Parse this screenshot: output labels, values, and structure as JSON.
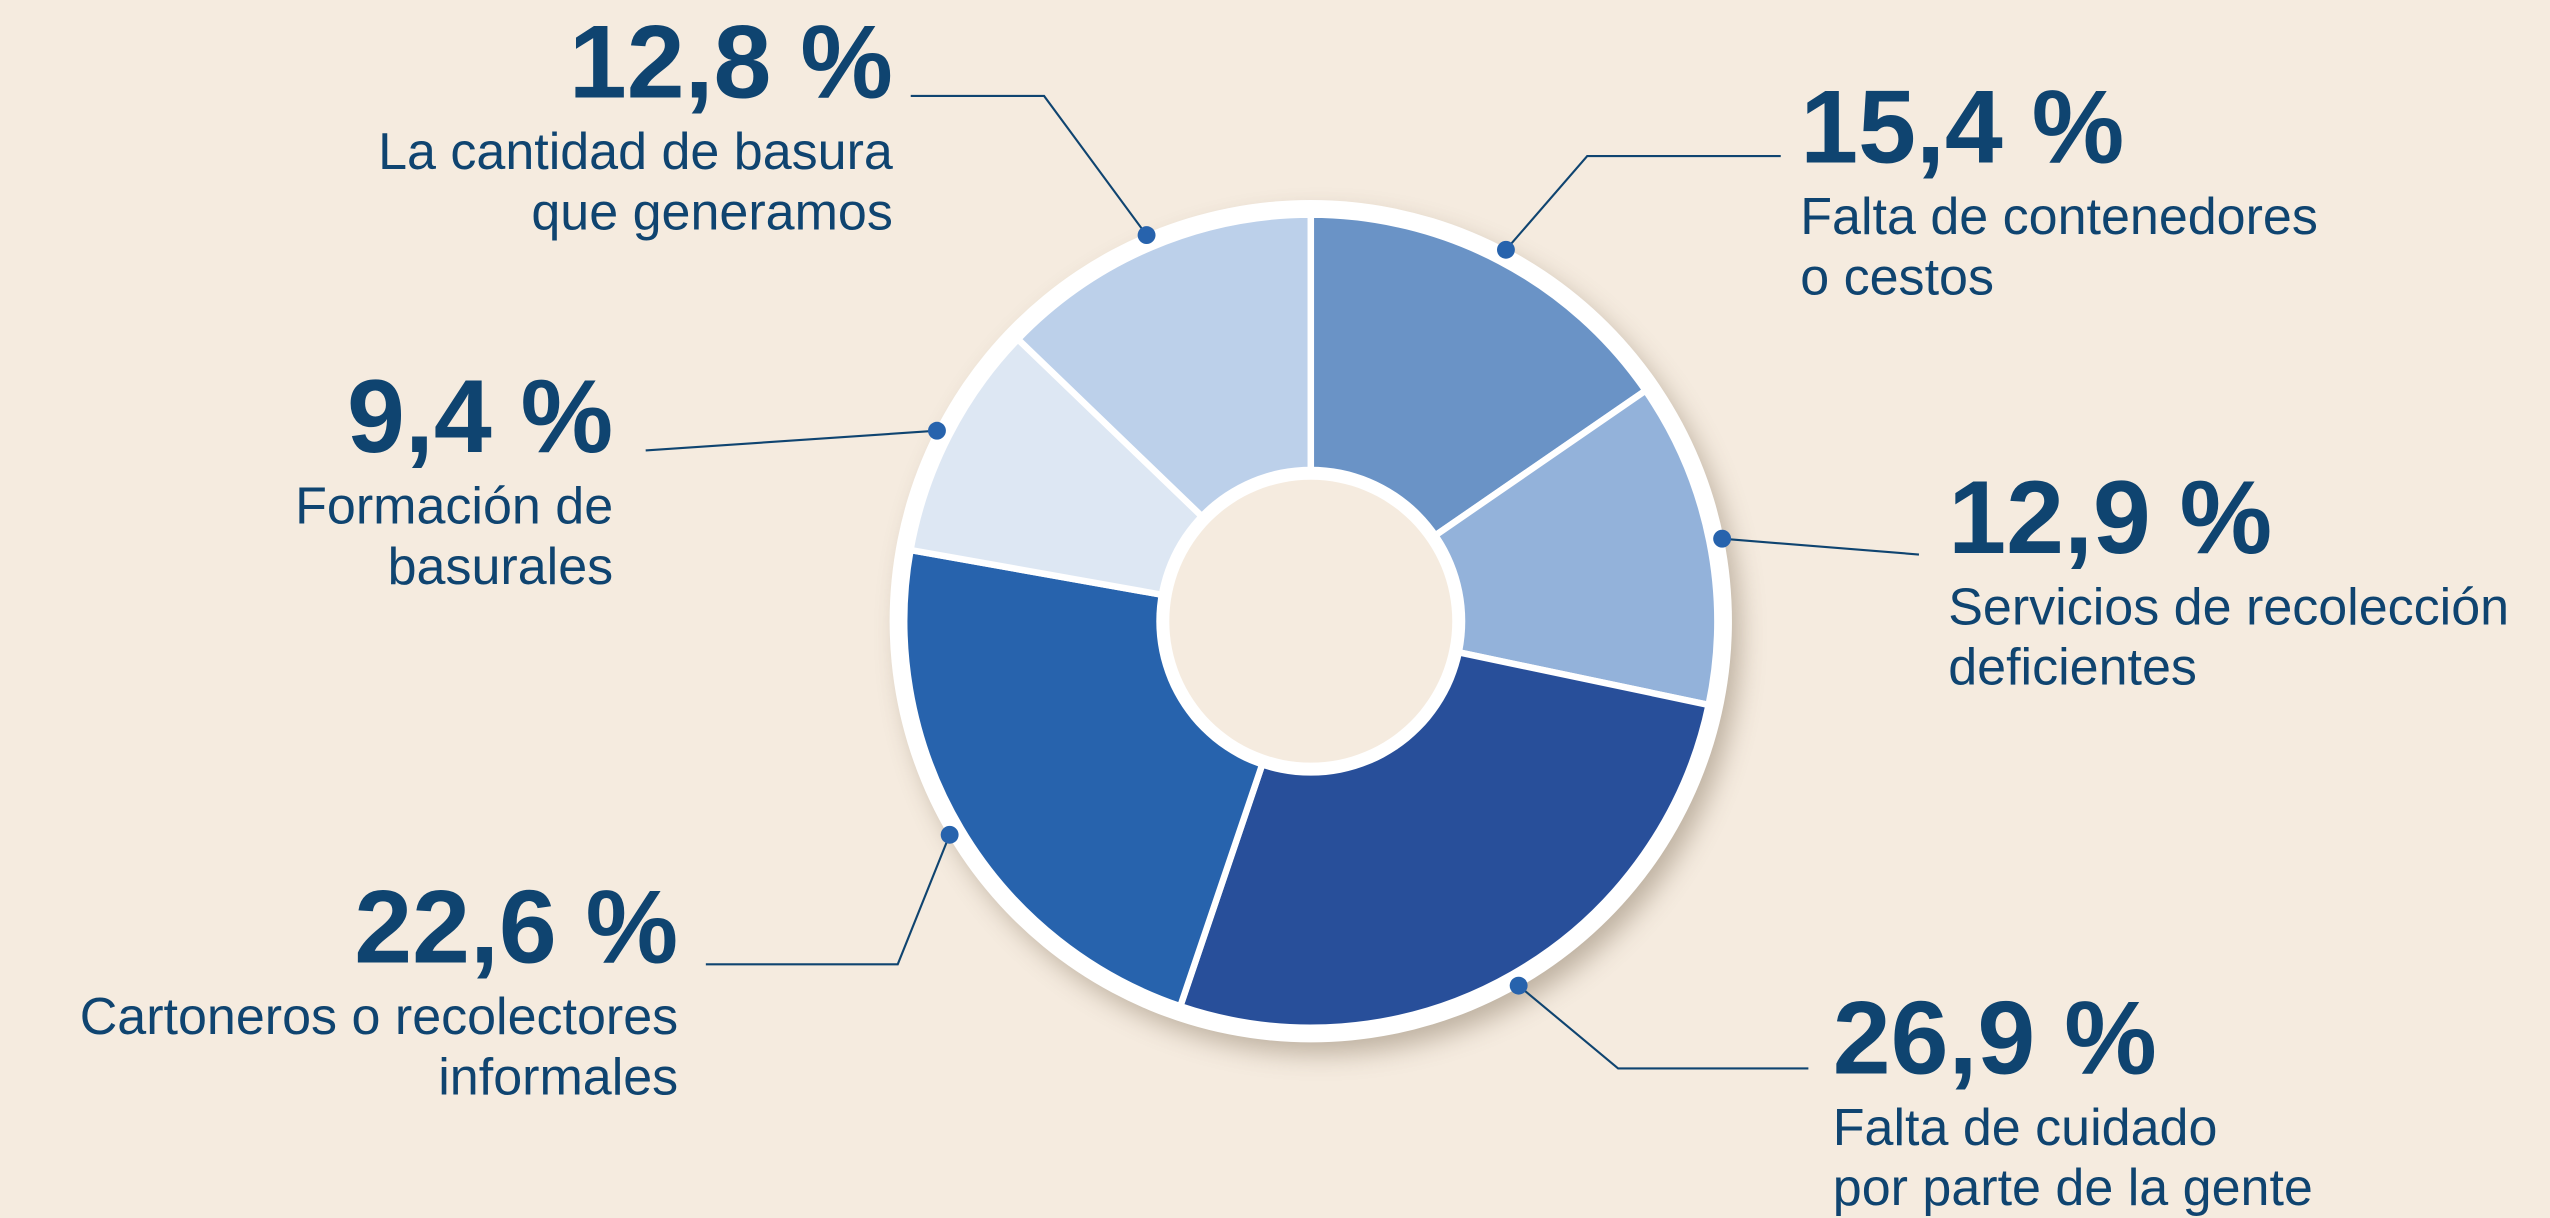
{
  "chart_data": {
    "type": "pie",
    "categories": [
      [
        "Falta de contenedores",
        "o cestos"
      ],
      [
        "Servicios de recolección",
        "deficientes"
      ],
      [
        "Falta de cuidado",
        "por parte de la gente"
      ],
      [
        "Cartoneros o recolectores",
        "informales"
      ],
      [
        "Formación de",
        "basurales"
      ],
      [
        "La cantidad de basura",
        "que generamos"
      ]
    ],
    "values": [
      15.4,
      12.9,
      26.9,
      22.6,
      9.4,
      12.8
    ],
    "value_labels": [
      "15,4 %",
      "12,9 %",
      "26,9 %",
      "22,6 %",
      "9,4 %",
      "12,8 %"
    ],
    "colors": [
      "#6a93c6",
      "#93b2da",
      "#284f9a",
      "#2763ad",
      "#dde7f3",
      "#bcd0ea"
    ]
  }
}
